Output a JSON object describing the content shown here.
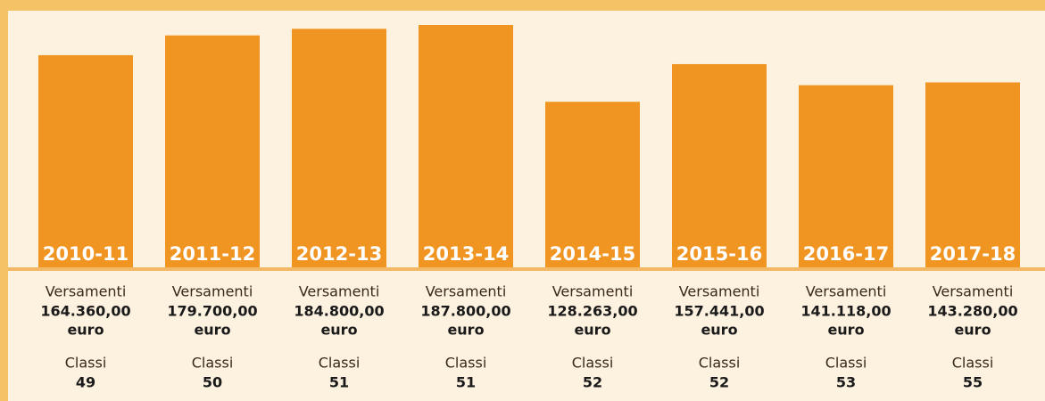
{
  "chart_data": {
    "type": "bar",
    "categories": [
      "2010-11",
      "2011-12",
      "2012-13",
      "2013-14",
      "2014-15",
      "2015-16",
      "2016-17",
      "2017-18"
    ],
    "series": [
      {
        "name": "Versamenti",
        "color": "#f09422",
        "values": [
          164360,
          179700,
          184800,
          187800,
          128263,
          157441,
          141118,
          143280
        ],
        "value_labels": [
          "164.360,00",
          "179.700,00",
          "184.800,00",
          "187.800,00",
          "128.263,00",
          "157.441,00",
          "141.118,00",
          "143.280,00"
        ],
        "unit": "euro"
      },
      {
        "name": "Classi",
        "values": [
          49,
          50,
          51,
          51,
          52,
          52,
          53,
          55
        ]
      }
    ]
  }
}
